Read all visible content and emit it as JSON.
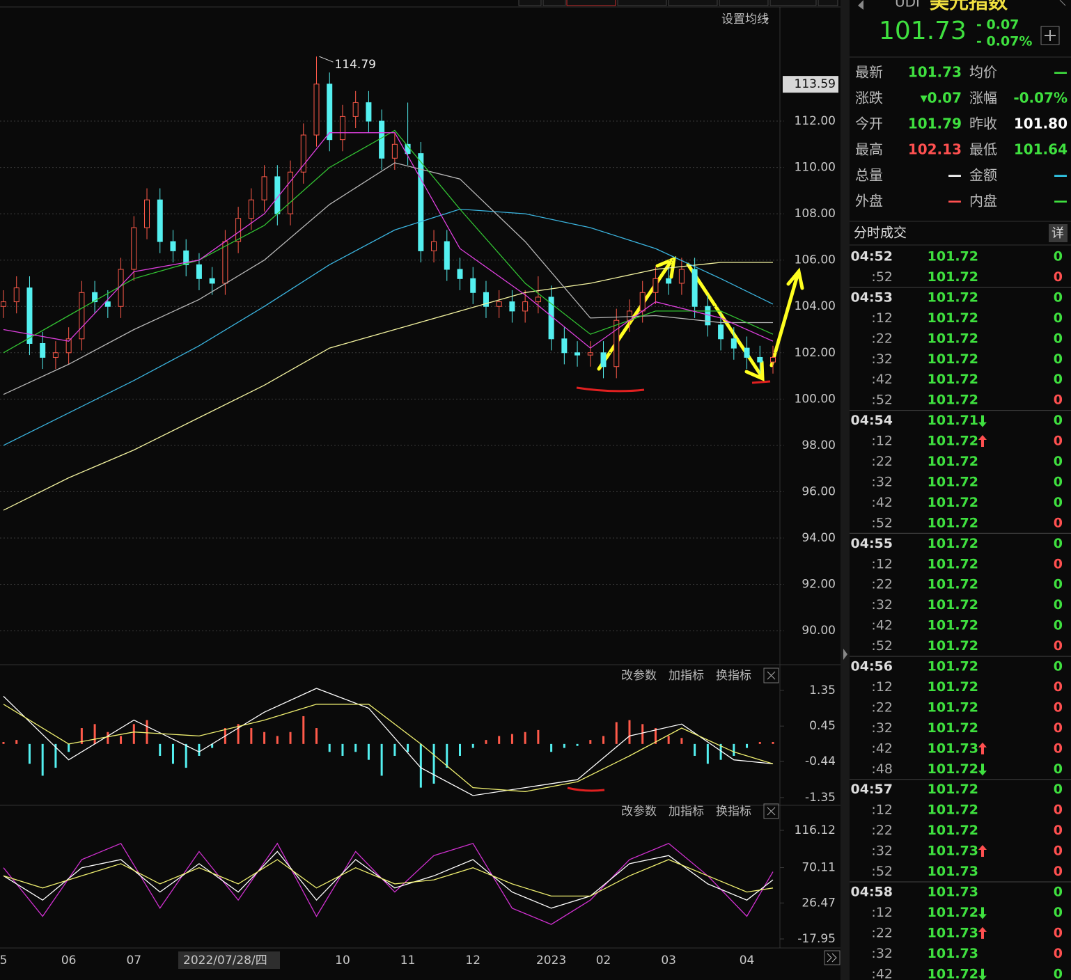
{
  "toolbar": {
    "setting": "设置均线"
  },
  "chart_data": [
    {
      "type": "candlestick",
      "categories": [
        "5",
        null,
        null,
        null,
        null,
        "06",
        null,
        null,
        null,
        null,
        "07",
        null,
        null,
        null,
        null,
        null,
        null,
        "2022/07/28/四",
        null,
        null,
        null,
        null,
        null,
        null,
        null,
        null,
        "10",
        null,
        null,
        null,
        null,
        "11",
        null,
        null,
        null,
        null,
        "12",
        null,
        null,
        null,
        null,
        null,
        "2023",
        null,
        null,
        null,
        "02",
        null,
        null,
        null,
        null,
        "03",
        null,
        null,
        null,
        null,
        null,
        "04",
        null,
        null
      ],
      "open": [
        104.0,
        104.2,
        104.8,
        102.4,
        101.8,
        102.0,
        102.6,
        104.6,
        104.2,
        104.0,
        105.6,
        107.4,
        108.6,
        106.8,
        106.4,
        105.8,
        105.2,
        105.0,
        106.8,
        107.8,
        108.6,
        109.6,
        108.0,
        109.8,
        111.4,
        113.6,
        111.2,
        112.2,
        112.8,
        112.0,
        110.4,
        111.0,
        110.6,
        106.4,
        106.8,
        105.6,
        105.2,
        104.6,
        104.0,
        104.2,
        103.8,
        104.2,
        104.4,
        102.6,
        102.0,
        101.9,
        102.0,
        101.4,
        103.4,
        103.8,
        104.6,
        105.2,
        105.0,
        105.6,
        104.0,
        103.2,
        102.6,
        102.2,
        101.8,
        101.6
      ],
      "high": [
        104.7,
        105.3,
        105.3,
        102.9,
        102.5,
        103.1,
        105.1,
        105.1,
        104.7,
        106.1,
        107.9,
        109.1,
        109.1,
        107.3,
        106.9,
        106.3,
        105.7,
        107.3,
        108.3,
        109.1,
        110.1,
        110.1,
        110.3,
        111.9,
        114.79,
        114.1,
        112.7,
        113.3,
        113.3,
        112.5,
        111.5,
        112.8,
        111.1,
        107.3,
        107.3,
        106.1,
        105.7,
        105.1,
        104.7,
        104.7,
        104.7,
        105.3,
        104.9,
        103.1,
        102.5,
        102.5,
        102.5,
        103.9,
        104.3,
        105.1,
        105.7,
        105.7,
        106.1,
        106.1,
        104.5,
        103.7,
        103.1,
        102.7,
        102.3,
        102.3
      ],
      "low": [
        103.5,
        103.7,
        101.9,
        101.3,
        101.3,
        101.5,
        102.1,
        103.7,
        103.5,
        103.5,
        105.1,
        106.9,
        106.3,
        105.9,
        105.3,
        104.7,
        104.5,
        104.5,
        106.3,
        107.3,
        108.1,
        107.5,
        107.5,
        109.3,
        110.9,
        110.7,
        110.7,
        111.7,
        111.5,
        109.9,
        109.9,
        110.1,
        105.9,
        105.9,
        105.1,
        104.7,
        104.1,
        103.5,
        103.5,
        103.3,
        103.3,
        103.7,
        102.1,
        101.5,
        101.4,
        101.4,
        100.9,
        100.9,
        102.9,
        103.3,
        104.1,
        104.5,
        104.5,
        103.5,
        102.7,
        102.1,
        101.7,
        101.3,
        101.1,
        101.1
      ],
      "close": [
        104.2,
        104.8,
        102.4,
        101.8,
        102.0,
        102.6,
        104.6,
        104.2,
        104.0,
        105.6,
        107.4,
        108.6,
        106.8,
        106.4,
        105.8,
        105.2,
        105.0,
        106.8,
        107.8,
        108.6,
        109.6,
        108.0,
        109.8,
        111.4,
        113.6,
        111.2,
        112.2,
        112.8,
        112.0,
        110.4,
        111.0,
        110.6,
        106.4,
        106.8,
        105.6,
        105.2,
        104.6,
        104.0,
        104.2,
        103.8,
        104.2,
        104.4,
        102.6,
        102.0,
        101.9,
        102.0,
        101.4,
        103.4,
        103.8,
        104.6,
        105.2,
        105.0,
        105.6,
        104.0,
        103.2,
        102.6,
        102.2,
        101.8,
        101.6,
        101.8
      ],
      "up_color": "#ff5a4a",
      "down_color": "#54f0f0",
      "high_label": "114.79",
      "marker": {
        "value": 113.59,
        "label": "113.59"
      },
      "lines": [
        {
          "color": "#f4f4a0",
          "x": [
            0,
            5,
            10,
            15,
            20,
            25,
            30,
            35,
            40,
            45,
            50,
            55,
            59
          ],
          "values": [
            95.2,
            96.6,
            97.8,
            99.2,
            100.6,
            102.2,
            103.0,
            103.8,
            104.6,
            105.0,
            105.6,
            105.9,
            105.9
          ]
        },
        {
          "color": "#3bb5e0",
          "x": [
            0,
            5,
            10,
            15,
            20,
            25,
            30,
            35,
            40,
            45,
            50,
            55,
            59
          ],
          "values": [
            98.0,
            99.4,
            100.8,
            102.3,
            104.0,
            105.8,
            107.3,
            108.2,
            108.0,
            107.4,
            106.5,
            105.2,
            104.1
          ]
        },
        {
          "color": "#b8b8b8",
          "x": [
            0,
            5,
            10,
            15,
            20,
            25,
            30,
            35,
            40,
            45,
            50,
            55,
            59
          ],
          "values": [
            100.2,
            101.5,
            103.0,
            104.3,
            106.0,
            108.4,
            110.2,
            109.5,
            106.8,
            103.5,
            103.6,
            103.3,
            103.3
          ]
        },
        {
          "color": "#33c433",
          "x": [
            0,
            5,
            10,
            15,
            20,
            25,
            30,
            35,
            40,
            45,
            50,
            55,
            59
          ],
          "values": [
            102.0,
            103.6,
            105.2,
            106.0,
            107.5,
            110.0,
            111.6,
            108.2,
            105.0,
            102.8,
            103.8,
            103.8,
            102.8
          ]
        },
        {
          "color": "#e040e0",
          "x": [
            0,
            5,
            10,
            15,
            20,
            25,
            30,
            35,
            40,
            45,
            50,
            55,
            59
          ],
          "values": [
            103.0,
            102.5,
            105.5,
            106.0,
            108.0,
            111.5,
            111.5,
            106.5,
            104.5,
            102.2,
            104.2,
            103.5,
            102.5
          ]
        }
      ],
      "ylim": [
        88.59,
        116.93
      ],
      "yticks": [
        {
          "value": 112,
          "label": "112.00"
        },
        {
          "value": 110,
          "label": "110.00"
        },
        {
          "value": 108,
          "label": "108.00"
        },
        {
          "value": 106,
          "label": "106.00"
        },
        {
          "value": 104,
          "label": "104.00"
        },
        {
          "value": 102,
          "label": "102.00"
        },
        {
          "value": 100,
          "label": "100.00"
        },
        {
          "value": 98,
          "label": "98.00"
        },
        {
          "value": 96,
          "label": "96.00"
        },
        {
          "value": 94,
          "label": "94.00"
        },
        {
          "value": 92,
          "label": "92.00"
        },
        {
          "value": 90,
          "label": "90.00"
        }
      ],
      "grid": true
    },
    {
      "type": "macd",
      "tools": [
        "改参数",
        "加指标",
        "换指标"
      ],
      "values": [
        0.05,
        0.1,
        -0.5,
        -0.8,
        -0.6,
        -0.2,
        0.4,
        0.5,
        0.3,
        0.2,
        0.5,
        0.6,
        -0.3,
        -0.5,
        -0.6,
        -0.3,
        -0.1,
        0.4,
        0.5,
        0.4,
        0.3,
        0.2,
        0.3,
        0.7,
        0.4,
        -0.2,
        -0.3,
        -0.2,
        -0.4,
        -0.8,
        -0.3,
        -0.2,
        -1.1,
        -1.0,
        -0.6,
        -0.3,
        -0.1,
        0.1,
        0.2,
        0.25,
        0.3,
        0.35,
        -0.2,
        -0.1,
        -0.05,
        0.1,
        0.2,
        0.55,
        0.6,
        0.5,
        0.4,
        0.2,
        0.15,
        -0.3,
        -0.5,
        -0.4,
        -0.3,
        -0.1,
        0.05,
        0.05
      ],
      "up_color": "#ff5a4a",
      "down_color": "#54f0f0",
      "lines": [
        {
          "color": "#ffffff",
          "x": [
            0,
            5,
            10,
            15,
            20,
            24,
            28,
            32,
            36,
            40,
            44,
            48,
            52,
            56,
            59
          ],
          "values": [
            1.2,
            -0.4,
            0.6,
            -0.2,
            0.8,
            1.4,
            0.9,
            -0.6,
            -1.3,
            -1.1,
            -0.9,
            0.2,
            0.5,
            -0.4,
            -0.5
          ]
        },
        {
          "color": "#f0f070",
          "x": [
            0,
            5,
            10,
            15,
            20,
            24,
            28,
            32,
            36,
            40,
            44,
            48,
            52,
            56,
            59
          ],
          "values": [
            1.0,
            0.0,
            0.3,
            0.2,
            0.6,
            1.0,
            1.0,
            0.0,
            -1.1,
            -1.2,
            -0.95,
            -0.3,
            0.4,
            -0.2,
            -0.5
          ]
        }
      ],
      "ylim": [
        -1.51,
        1.47
      ],
      "yticks": [
        1.35,
        0.45,
        -0.44,
        -1.35
      ]
    },
    {
      "type": "line",
      "tools": [
        "改参数",
        "加指标",
        "换指标"
      ],
      "lines": [
        {
          "color": "#d030d0",
          "x": [
            0,
            3,
            6,
            9,
            12,
            15,
            18,
            21,
            24,
            27,
            30,
            33,
            36,
            39,
            42,
            45,
            48,
            51,
            54,
            57,
            59
          ],
          "values": [
            70,
            10,
            80,
            100,
            20,
            90,
            30,
            100,
            10,
            90,
            40,
            85,
            100,
            20,
            0,
            30,
            80,
            100,
            60,
            10,
            65
          ]
        },
        {
          "color": "#ffffff",
          "x": [
            0,
            3,
            6,
            9,
            12,
            15,
            18,
            21,
            24,
            27,
            30,
            33,
            36,
            39,
            42,
            45,
            48,
            51,
            54,
            57,
            59
          ],
          "values": [
            60,
            30,
            70,
            80,
            40,
            75,
            40,
            90,
            30,
            80,
            45,
            60,
            80,
            40,
            20,
            35,
            75,
            85,
            50,
            30,
            55
          ]
        },
        {
          "color": "#f0f070",
          "x": [
            0,
            3,
            6,
            9,
            12,
            15,
            18,
            21,
            24,
            27,
            30,
            33,
            36,
            39,
            42,
            45,
            48,
            51,
            54,
            57,
            59
          ],
          "values": [
            60,
            45,
            60,
            75,
            50,
            70,
            50,
            80,
            45,
            70,
            50,
            55,
            70,
            50,
            35,
            35,
            60,
            80,
            60,
            40,
            45
          ]
        }
      ],
      "ylim": [
        -27.4,
        127.3
      ],
      "yticks": [
        116.12,
        70.11,
        26.47,
        -17.95
      ]
    }
  ],
  "quote": {
    "code": "UDI",
    "name": "美元指数",
    "price": "101.73",
    "change": "- 0.07",
    "change_pct": "- 0.07%",
    "table": [
      [
        {
          "text": "最新"
        },
        {
          "text": "101.73",
          "color": "#3fe03f"
        },
        {
          "text": "均价"
        },
        {
          "text": "—",
          "color": "#3fe03f"
        }
      ],
      [
        {
          "text": "涨跌"
        },
        {
          "text": "▾0.07",
          "color": "#3fe03f"
        },
        {
          "text": "涨幅"
        },
        {
          "text": "-0.07%",
          "color": "#3fe03f"
        }
      ],
      [
        {
          "text": "今开"
        },
        {
          "text": "101.79",
          "color": "#3fe03f"
        },
        {
          "text": "昨收"
        },
        {
          "text": "101.80",
          "color": "#ffffff"
        }
      ],
      [
        {
          "text": "最高"
        },
        {
          "text": "102.13",
          "color": "#ff5050"
        },
        {
          "text": "最低"
        },
        {
          "text": "101.64",
          "color": "#3fe03f"
        }
      ],
      [
        {
          "text": "总量"
        },
        {
          "text": "—",
          "color": "#ffffff"
        },
        {
          "text": "金额"
        },
        {
          "text": "—",
          "color": "#33d0f0"
        }
      ],
      [
        {
          "text": "外盘"
        },
        {
          "text": "—",
          "color": "#ff5050"
        },
        {
          "text": "内盘"
        },
        {
          "text": "—",
          "color": "#3fe03f"
        }
      ]
    ]
  },
  "trades": {
    "title": "分时成交",
    "detail": "详",
    "rows": [
      {
        "time": "04:52",
        "price": "101.72",
        "vol": "0",
        "vol_color": "#3fe03f"
      },
      {
        "time": ":52",
        "price": "101.72",
        "vol": "0",
        "vol_color": "#ff5050"
      },
      {
        "time": "04:53",
        "price": "101.72",
        "vol": "0",
        "vol_color": "#3fe03f"
      },
      {
        "time": ":12",
        "price": "101.72",
        "vol": "0",
        "vol_color": "#3fe03f"
      },
      {
        "time": ":22",
        "price": "101.72",
        "vol": "0",
        "vol_color": "#3fe03f"
      },
      {
        "time": ":32",
        "price": "101.72",
        "vol": "0",
        "vol_color": "#3fe03f"
      },
      {
        "time": ":42",
        "price": "101.72",
        "vol": "0",
        "vol_color": "#3fe03f"
      },
      {
        "time": ":52",
        "price": "101.72",
        "vol": "0",
        "vol_color": "#ff5050"
      },
      {
        "time": "04:54",
        "price": "101.71",
        "vol": "0",
        "vol_color": "#3fe03f",
        "dir": "down"
      },
      {
        "time": ":12",
        "price": "101.72",
        "vol": "0",
        "vol_color": "#ff5050",
        "dir": "up"
      },
      {
        "time": ":22",
        "price": "101.72",
        "vol": "0",
        "vol_color": "#3fe03f"
      },
      {
        "time": ":32",
        "price": "101.72",
        "vol": "0",
        "vol_color": "#3fe03f"
      },
      {
        "time": ":42",
        "price": "101.72",
        "vol": "0",
        "vol_color": "#3fe03f"
      },
      {
        "time": ":52",
        "price": "101.72",
        "vol": "0",
        "vol_color": "#ff5050"
      },
      {
        "time": "04:55",
        "price": "101.72",
        "vol": "0",
        "vol_color": "#3fe03f"
      },
      {
        "time": ":12",
        "price": "101.72",
        "vol": "0",
        "vol_color": "#ff5050"
      },
      {
        "time": ":22",
        "price": "101.72",
        "vol": "0",
        "vol_color": "#3fe03f"
      },
      {
        "time": ":32",
        "price": "101.72",
        "vol": "0",
        "vol_color": "#3fe03f"
      },
      {
        "time": ":42",
        "price": "101.72",
        "vol": "0",
        "vol_color": "#3fe03f"
      },
      {
        "time": ":52",
        "price": "101.72",
        "vol": "0",
        "vol_color": "#ff5050"
      },
      {
        "time": "04:56",
        "price": "101.72",
        "vol": "0",
        "vol_color": "#3fe03f"
      },
      {
        "time": ":12",
        "price": "101.72",
        "vol": "0",
        "vol_color": "#ff5050"
      },
      {
        "time": ":22",
        "price": "101.72",
        "vol": "0",
        "vol_color": "#ff5050"
      },
      {
        "time": ":32",
        "price": "101.72",
        "vol": "0",
        "vol_color": "#ff5050"
      },
      {
        "time": ":42",
        "price": "101.73",
        "vol": "0",
        "vol_color": "#ff5050",
        "dir": "up"
      },
      {
        "time": ":48",
        "price": "101.72",
        "vol": "0",
        "vol_color": "#3fe03f",
        "dir": "down"
      },
      {
        "time": "04:57",
        "price": "101.72",
        "vol": "0",
        "vol_color": "#3fe03f"
      },
      {
        "time": ":12",
        "price": "101.72",
        "vol": "0",
        "vol_color": "#ff5050"
      },
      {
        "time": ":22",
        "price": "101.72",
        "vol": "0",
        "vol_color": "#ff5050"
      },
      {
        "time": ":32",
        "price": "101.73",
        "vol": "0",
        "vol_color": "#ff5050",
        "dir": "up"
      },
      {
        "time": ":52",
        "price": "101.73",
        "vol": "0",
        "vol_color": "#ff5050"
      },
      {
        "time": "04:58",
        "price": "101.73",
        "vol": "0",
        "vol_color": "#3fe03f"
      },
      {
        "time": ":12",
        "price": "101.72",
        "vol": "0",
        "vol_color": "#3fe03f",
        "dir": "down"
      },
      {
        "time": ":22",
        "price": "101.73",
        "vol": "0",
        "vol_color": "#ff5050",
        "dir": "up"
      },
      {
        "time": ":32",
        "price": "101.73",
        "vol": "0",
        "vol_color": "#ff5050"
      },
      {
        "time": ":42",
        "price": "101.72",
        "vol": "0",
        "vol_color": "#3fe03f",
        "dir": "down"
      }
    ]
  }
}
